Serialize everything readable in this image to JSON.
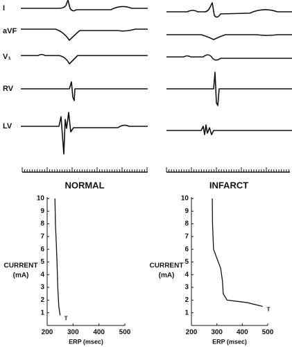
{
  "ecg": {
    "leads": [
      "I",
      "aVF",
      "V₁",
      "RV",
      "LV"
    ],
    "columns": [
      "NORMAL",
      "INFARCT"
    ]
  },
  "chart_data": [
    {
      "type": "line",
      "x_label": "ERP (msec)",
      "y_label": "CURRENT",
      "y_unit": "(mA)",
      "x": [
        230,
        232,
        235,
        238,
        241,
        245,
        250
      ],
      "values": [
        10,
        8,
        6.6,
        5,
        3,
        1.5,
        0.8
      ],
      "color": "#111111",
      "xlim": [
        200,
        500
      ],
      "ylim": [
        0,
        10
      ],
      "xticks": [
        200,
        300,
        400,
        500
      ],
      "yticks": [
        1,
        2,
        3,
        4,
        5,
        6,
        7,
        8,
        9,
        10
      ],
      "annotation": "T"
    },
    {
      "type": "line",
      "x_label": "ERP (msec)",
      "y_label": "CURRENT",
      "y_unit": "(mA)",
      "x": [
        282,
        283,
        287,
        300,
        315,
        322,
        325,
        340,
        420,
        480
      ],
      "values": [
        10,
        8,
        6,
        5.3,
        4.5,
        3.5,
        2.5,
        2,
        1.8,
        1.5
      ],
      "color": "#111111",
      "xlim": [
        200,
        500
      ],
      "ylim": [
        0,
        10
      ],
      "xticks": [
        200,
        300,
        400,
        500
      ],
      "yticks": [
        1,
        2,
        3,
        4,
        5,
        6,
        7,
        8,
        9,
        10
      ],
      "annotation": "T"
    }
  ]
}
